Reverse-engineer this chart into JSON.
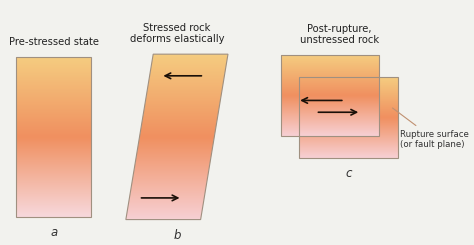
{
  "bg_color": "#f2f2ee",
  "title_a": "Pre-stressed state",
  "title_b": "Stressed rock\ndeforms elastically",
  "title_c": "Post-rupture,\nunstressed rock",
  "label_a": "a",
  "label_b": "b",
  "label_c": "c",
  "rupture_label": "Rupture surface\n(or fault plane)",
  "grad_top_a": "#f7d8dc",
  "grad_mid_a": "#f09060",
  "grad_bot_a": "#f5cc80",
  "grad_top_b": "#f7d0d4",
  "grad_mid_b": "#f09060",
  "grad_bot_b": "#f5cc80",
  "grad_top_c": "#f7d0d4",
  "grad_mid_c": "#f09060",
  "grad_bot_c": "#f5cc80",
  "box_edge": "#a09080",
  "arrow_color": "#1a1008",
  "font_size_title": 7.2,
  "font_size_label": 8.5,
  "font_size_small": 6.2
}
